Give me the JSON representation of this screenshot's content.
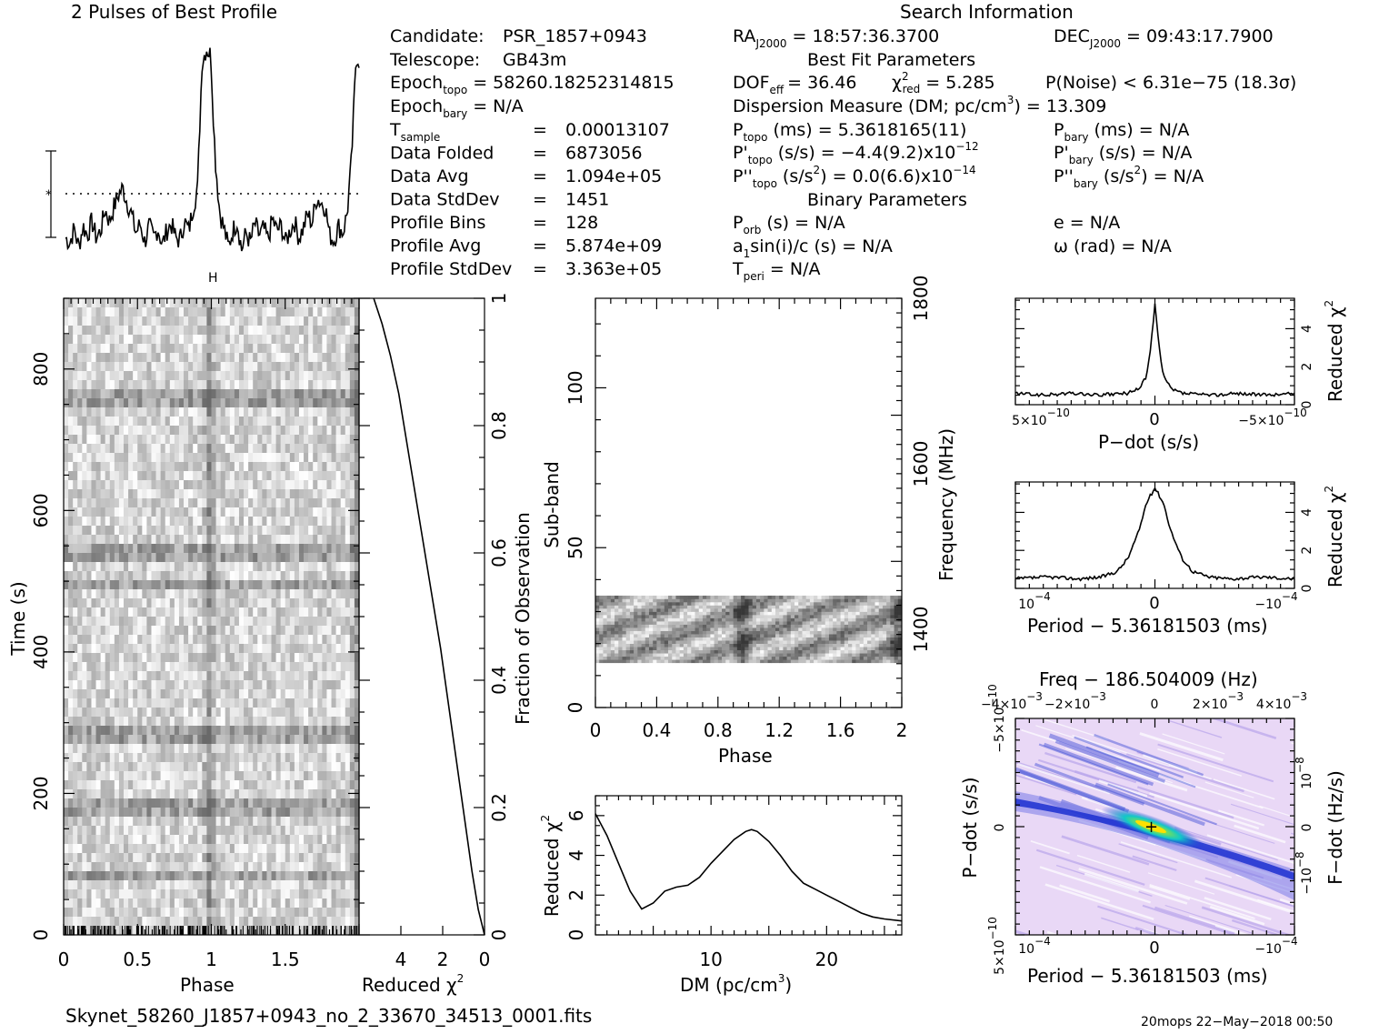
{
  "header": {
    "profile_title": "2 Pulses of Best Profile",
    "search_title": "Search Information",
    "best_fit_title": "Best Fit Parameters",
    "binary_title": "Binary Parameters"
  },
  "candidate": {
    "candidate_label": "Candidate:",
    "candidate": "PSR_1857+0943",
    "telescope_label": "Telescope:",
    "telescope": "GB43m",
    "epoch_topo_label": "Epoch",
    "epoch_topo_sub": "topo",
    "epoch_topo": "= 58260.18252314815",
    "epoch_bary_label": "Epoch",
    "epoch_bary_sub": "bary",
    "epoch_bary": "= N/A",
    "rows": [
      {
        "label": "T",
        "sub": "sample",
        "eq": "=",
        "value": "0.00013107"
      },
      {
        "label": "Data Folded",
        "sub": "",
        "eq": "=",
        "value": "6873056"
      },
      {
        "label": "Data Avg",
        "sub": "",
        "eq": "=",
        "value": "1.094e+05"
      },
      {
        "label": "Data StdDev",
        "sub": "",
        "eq": "=",
        "value": "1451"
      },
      {
        "label": "Profile Bins",
        "sub": "",
        "eq": "=",
        "value": "128"
      },
      {
        "label": "Profile Avg",
        "sub": "",
        "eq": "=",
        "value": "5.874e+09"
      },
      {
        "label": "Profile StdDev",
        "sub": "",
        "eq": "=",
        "value": "3.363e+05"
      }
    ]
  },
  "search": {
    "ra": "RA",
    "ra_sub": "J2000",
    "ra_value": "= 18:57:36.3700",
    "dec": "DEC",
    "dec_sub": "J2000",
    "dec_value": "= 09:43:17.7900",
    "dof": "DOF",
    "dof_sub": "eff",
    "dof_value": "= 36.46",
    "chi": "χ",
    "chi_sup": "2",
    "chi_sub": "red",
    "chi_value": "= 5.285",
    "pnoise": "P(Noise) < 6.31e−75  (18.3σ)",
    "dm": "Dispersion Measure (DM; pc/cm",
    "dm_sup": "3",
    "dm_value": ") = 13.309",
    "ptopo": "P",
    "ptopo_sub": "topo",
    "ptopo_value": "(ms) =  5.3618165(11)",
    "pdtopo": "P'",
    "pdtopo_sub": "topo",
    "pdtopo_value": "(s/s) = −4.4(9.2)x10",
    "pdtopo_exp": "−12",
    "pddtopo": "P''",
    "pddtopo_sub": "topo",
    "pddtopo_value": "(s/s",
    "pddtopo_sup": "2",
    "pddtopo_value2": ") = 0.0(6.6)x10",
    "pddtopo_exp": "−14",
    "pbary": "P",
    "pbary_sub": "bary",
    "pbary_value": "(ms) = N/A",
    "pdbary": "P'",
    "pdbary_sub": "bary",
    "pdbary_value": "(s/s) = N/A",
    "pddbary": "P''",
    "pddbary_sub": "bary",
    "pddbary_value": "(s/s",
    "pddbary_sup": "2",
    "pddbary_value2": ") = N/A",
    "porb": "P",
    "porb_sub": "orb",
    "porb_value": "(s) = N/A",
    "asini": "a",
    "asini_sub": "1",
    "asini_value": "sin(i)/c (s) = N/A",
    "tperi": "T",
    "tperi_sub": "peri",
    "tperi_value": "= N/A",
    "ecc": "e = N/A",
    "omega": "ω (rad) = N/A"
  },
  "footer": {
    "filename": "Skynet_58260_J1857+0943_no_2_33670_34513_0001.fits",
    "stamp": "20mops  22−May−2018 00:50"
  },
  "colors": {
    "axis": "#000000",
    "grey_min": "#ffffff",
    "grey_max": "#5a5a5a",
    "ppdot_bg": "#e8d4f4",
    "ppdot_mid": "#3a3ad8",
    "ppdot_core": "#10c8c8",
    "ppdot_peak": "#ffd000"
  },
  "chart_data": [
    {
      "id": "profile",
      "type": "line",
      "title": "2 Pulses of Best Profile",
      "x": [
        0.0,
        0.03,
        0.06,
        0.09,
        0.12,
        0.15,
        0.18,
        0.21,
        0.24,
        0.27,
        0.3,
        0.33,
        0.36,
        0.39,
        0.42,
        0.45,
        0.48,
        0.51,
        0.54,
        0.57,
        0.6,
        0.63,
        0.66,
        0.69,
        0.72,
        0.75,
        0.78,
        0.81,
        0.84,
        0.87,
        0.9,
        0.93,
        0.96,
        0.99,
        1.02,
        1.05,
        1.08,
        1.11,
        1.14,
        1.17,
        1.2,
        1.23,
        1.26,
        1.29,
        1.32,
        1.35,
        1.38,
        1.41,
        1.44,
        1.47,
        1.5,
        1.53,
        1.56,
        1.59,
        1.62,
        1.65,
        1.68,
        1.71,
        1.74,
        1.77,
        1.8,
        1.83,
        1.86,
        1.89,
        1.92,
        1.95,
        1.98,
        2.0
      ],
      "y": [
        -0.9,
        -1.1,
        -0.5,
        -1.3,
        -0.4,
        -0.8,
        -0.2,
        -0.9,
        -0.6,
        0.3,
        -0.2,
        0.4,
        0.9,
        1.2,
        0.6,
        0.1,
        -0.7,
        -0.3,
        -1.1,
        -0.4,
        -0.9,
        -0.5,
        -1.2,
        -0.6,
        -0.3,
        -0.9,
        -1.0,
        -0.2,
        -0.6,
        0.4,
        1.2,
        6.5,
        7.1,
        6.8,
        2.5,
        0.2,
        -0.5,
        -1.3,
        -0.6,
        -0.2,
        -1.4,
        -0.7,
        -1.1,
        -0.3,
        -0.8,
        -0.5,
        -1.0,
        -0.1,
        -0.6,
        -0.4,
        -1.1,
        -0.6,
        -0.2,
        -0.9,
        -0.5,
        0.1,
        -0.3,
        0.8,
        0.6,
        0.4,
        -0.8,
        -1.0,
        -0.4,
        -0.7,
        0.2,
        2.5,
        6.8,
        6.6
      ],
      "xlim": [
        0,
        2
      ],
      "ylim": [
        -1.8,
        7.6
      ]
    },
    {
      "id": "time_phase",
      "type": "heatmap",
      "xlabel": "Phase",
      "ylabel": "Time (s)",
      "xlim": [
        0,
        2
      ],
      "ylim": [
        0,
        900
      ],
      "xticks": [
        "0",
        "0.5",
        "1",
        "1.5"
      ],
      "yticks": [
        "0",
        "200",
        "400",
        "600",
        "800"
      ]
    },
    {
      "id": "reduced_chi_time",
      "type": "line",
      "xlabel": "Reduced χ",
      "xlabel_sup": "2",
      "ylabel": "Fraction of Observation",
      "x": [
        0.0,
        0.3,
        0.6,
        0.9,
        1.2,
        1.5,
        1.8,
        2.1,
        2.5,
        2.9,
        3.3,
        3.7,
        4.1,
        4.5,
        4.9,
        5.3
      ],
      "y": [
        0.0,
        0.04,
        0.1,
        0.17,
        0.24,
        0.31,
        0.38,
        0.45,
        0.53,
        0.61,
        0.69,
        0.77,
        0.85,
        0.91,
        0.96,
        1.0
      ],
      "xlim": [
        6,
        0
      ],
      "ylim": [
        0,
        1
      ],
      "xticks": [
        "4",
        "2",
        "0"
      ],
      "yticks": [
        "0.2",
        "0.4",
        "0.6",
        "0.8",
        "1"
      ]
    },
    {
      "id": "subband_phase",
      "type": "heatmap",
      "xlabel": "Phase",
      "ylabel": "Sub-band",
      "ylabel_right": "Frequency (MHz)",
      "xlim": [
        0,
        2
      ],
      "ylim": [
        0,
        128
      ],
      "filled_band": [
        14,
        35
      ],
      "xticks": [
        "0",
        "0.4",
        "0.8",
        "1.2",
        "1.6",
        "2"
      ],
      "yticks": [
        "0",
        "50",
        "100"
      ],
      "yticks_right": [
        "1400",
        "1600",
        "1800"
      ]
    },
    {
      "id": "dm_chi",
      "type": "line",
      "xlabel": "DM (pc/cm",
      "xlabel_sup": "3",
      "xlabel_end": ")",
      "ylabel": "Reduced χ",
      "ylabel_sup": "2",
      "x": [
        0,
        1,
        2,
        3,
        4,
        5,
        6,
        7,
        8,
        9,
        10,
        11,
        12,
        13,
        13.5,
        14,
        15,
        16,
        17,
        18,
        19,
        20,
        21,
        22,
        23,
        24,
        25,
        26.5
      ],
      "y": [
        6.1,
        5.0,
        3.6,
        2.2,
        1.3,
        1.6,
        2.2,
        2.4,
        2.5,
        2.9,
        3.6,
        4.2,
        4.8,
        5.2,
        5.3,
        5.2,
        4.7,
        4.0,
        3.2,
        2.6,
        2.3,
        2.0,
        1.7,
        1.4,
        1.1,
        0.9,
        0.8,
        0.7
      ],
      "xlim": [
        0,
        26.5
      ],
      "ylim": [
        0,
        7
      ],
      "xticks": [
        "10",
        "20"
      ],
      "yticks": [
        "0",
        "2",
        "4",
        "6"
      ]
    },
    {
      "id": "pdot_chi",
      "type": "line",
      "xlabel": "P−dot (s/s)",
      "ylabel": "Reduced χ",
      "ylabel_sup": "2",
      "x": [
        -5,
        -4,
        -3,
        -2,
        -1,
        -0.6,
        -0.3,
        -0.15,
        0,
        0.15,
        0.3,
        0.6,
        1,
        2,
        3,
        4,
        5
      ],
      "y": [
        0.6,
        0.5,
        0.6,
        0.5,
        0.6,
        0.8,
        1.5,
        3.0,
        5.3,
        3.0,
        1.5,
        0.8,
        0.6,
        0.5,
        0.6,
        0.5,
        0.6
      ],
      "xlim": [
        5,
        -5
      ],
      "ylim": [
        0,
        5.6
      ],
      "xticks": [
        "5×10",
        "0",
        "−5×10"
      ],
      "xticks_exp": [
        "−10",
        "",
        "−10"
      ],
      "yticks": [
        "0",
        "2",
        "4"
      ]
    },
    {
      "id": "period_chi",
      "type": "line",
      "xlabel": "Period − 5.36181503 (ms)",
      "ylabel": "Reduced χ",
      "ylabel_sup": "2",
      "x": [
        -1.3,
        -1.0,
        -0.7,
        -0.5,
        -0.35,
        -0.25,
        -0.15,
        -0.08,
        0,
        0.08,
        0.15,
        0.25,
        0.35,
        0.5,
        0.7,
        1.0,
        1.3
      ],
      "y": [
        0.5,
        0.6,
        0.5,
        0.6,
        0.9,
        1.6,
        3.0,
        4.5,
        5.3,
        4.5,
        3.0,
        1.6,
        0.9,
        0.6,
        0.5,
        0.6,
        0.5
      ],
      "xlim": [
        1.3,
        -1.3
      ],
      "ylim": [
        0,
        5.6
      ],
      "xticks": [
        "10",
        "0",
        "−10"
      ],
      "xticks_exp": [
        "−4",
        "",
        "−4"
      ],
      "yticks": [
        "0",
        "2",
        "4"
      ]
    },
    {
      "id": "ppdot_plane",
      "type": "heatmap",
      "title": "Freq − 186.504009 (Hz)",
      "xlabel": "Period − 5.36181503 (ms)",
      "ylabel": "P−dot (s/s)",
      "ylabel_right": "F−dot (Hz/s)",
      "xlim": [
        1.3,
        -1.3
      ],
      "ylim": [
        5,
        -5
      ],
      "xticks_top": [
        "−4×10",
        "−2×10",
        "0",
        "2×10",
        "4×10"
      ],
      "xticks_top_exp": [
        "−3",
        "−3",
        "",
        "−3",
        "−3"
      ],
      "xticks": [
        "10",
        "0",
        "−10"
      ],
      "xticks_exp": [
        "−4",
        "",
        "−4"
      ],
      "yticks": [
        "5×10",
        "0",
        "−5×10"
      ],
      "yticks_exp": [
        "−10",
        "",
        "−10"
      ],
      "yticks_right": [
        "−10",
        "0",
        "10"
      ],
      "yticks_right_exp": [
        "−8",
        "",
        "−8"
      ]
    }
  ]
}
